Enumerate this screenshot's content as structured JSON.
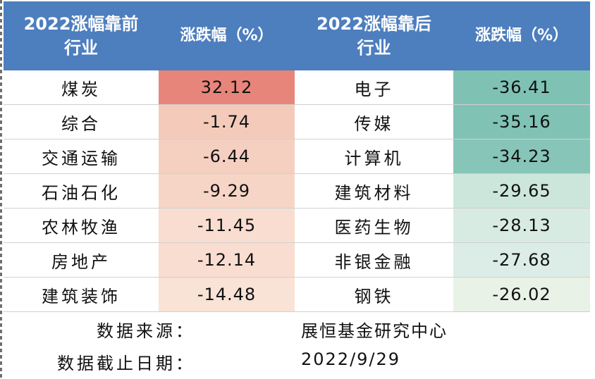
{
  "header": {
    "top_name_line1": "2022涨幅靠前",
    "top_name_line2": "行业",
    "top_pct": "涨跌幅（%）",
    "bottom_name_line1": "2022涨幅靠后",
    "bottom_name_line2": "行业",
    "bottom_pct": "涨跌幅（%）"
  },
  "rows": [
    {
      "top_industry": "煤炭",
      "top_value": "32.12",
      "bottom_industry": "电子",
      "bottom_value": "-36.41"
    },
    {
      "top_industry": "综合",
      "top_value": "-1.74",
      "bottom_industry": "传媒",
      "bottom_value": "-35.16"
    },
    {
      "top_industry": "交通运输",
      "top_value": "-6.44",
      "bottom_industry": "计算机",
      "bottom_value": "-34.23"
    },
    {
      "top_industry": "石油石化",
      "top_value": "-9.29",
      "bottom_industry": "建筑材料",
      "bottom_value": "-29.65"
    },
    {
      "top_industry": "农林牧渔",
      "top_value": "-11.45",
      "bottom_industry": "医药生物",
      "bottom_value": "-28.13"
    },
    {
      "top_industry": "房地产",
      "top_value": "-12.14",
      "bottom_industry": "非银金融",
      "bottom_value": "-27.68"
    },
    {
      "top_industry": "建筑装饰",
      "top_value": "-14.48",
      "bottom_industry": "钢铁",
      "bottom_value": "-26.02"
    }
  ],
  "colors": {
    "header_bg": "#4d7ebe",
    "top_values": [
      "#e8857a",
      "#f4cbbb",
      "#f5d0c0",
      "#f6d5c6",
      "#f8ddd0",
      "#f8ddd0",
      "#f9e2d6"
    ],
    "bottom_values": [
      "#7fc2b3",
      "#80c3b4",
      "#86c5b7",
      "#cde6dc",
      "#d7ebe3",
      "#dbede6",
      "#e8f2e6"
    ]
  },
  "footer": {
    "source_label": "数据来源：",
    "source_value": "展恒基金研究中心",
    "date_label": "数据截止日期：",
    "date_value": "2022/9/29"
  }
}
